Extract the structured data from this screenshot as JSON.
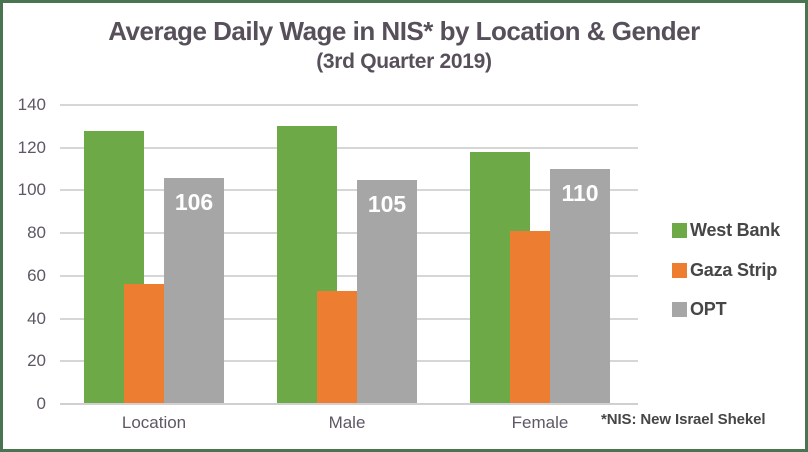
{
  "title": "Average Daily Wage in NIS* by Location & Gender",
  "subtitle": "(3rd Quarter 2019)",
  "footnote": "*NIS: New Israel Shekel",
  "colors": {
    "frame_green": "#4a7350",
    "title_text": "#57505a",
    "axis_text": "#5e5765",
    "legend_text": "#464646",
    "gridline": "#d6d6d6",
    "value_label_text": "#ffffff"
  },
  "chart_data": {
    "type": "bar",
    "title": "Average Daily Wage in NIS* by Location & Gender",
    "subtitle": "(3rd Quarter 2019)",
    "categories": [
      "Location",
      "Male",
      "Female"
    ],
    "series": [
      {
        "name": "West Bank",
        "color": "#6daa47",
        "values": [
          128,
          130,
          118
        ],
        "show_value_labels": false,
        "value_labels": []
      },
      {
        "name": "Gaza Strip",
        "color": "#ed7d31",
        "values": [
          56,
          53,
          81
        ],
        "show_value_labels": false,
        "value_labels": []
      },
      {
        "name": "OPT",
        "color": "#a6a6a6",
        "values": [
          106,
          105,
          110
        ],
        "show_value_labels": true,
        "value_labels": [
          "106",
          "105",
          "110"
        ]
      }
    ],
    "ylabel": "",
    "xlabel": "",
    "ylim": [
      0,
      140
    ],
    "yticks": [
      0,
      20,
      40,
      60,
      80,
      100,
      120,
      140
    ],
    "grid": "horizontal",
    "legend_position": "right",
    "footnote": "*NIS: New Israel Shekel"
  }
}
